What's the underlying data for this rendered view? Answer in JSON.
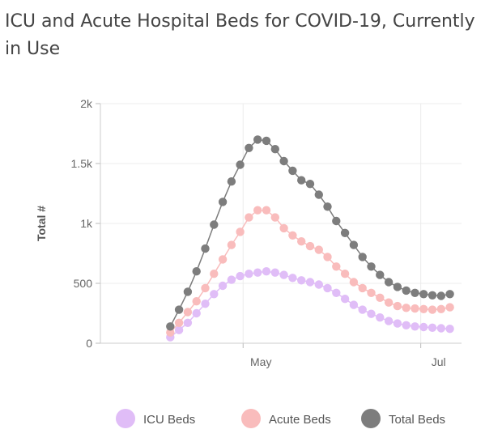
{
  "chart_data": {
    "type": "scatter",
    "title": "ICU and Acute Hospital Beds for COVID-19, Currently in Use",
    "ylabel": "Total #",
    "xlabel": "",
    "ylim": [
      0,
      2000
    ],
    "xlim": [
      "2020-03-13",
      "2020-07-15"
    ],
    "yticks": [
      {
        "value": 0,
        "label": "0"
      },
      {
        "value": 500,
        "label": "500"
      },
      {
        "value": 1000,
        "label": "1k"
      },
      {
        "value": 1500,
        "label": "1.5k"
      },
      {
        "value": 2000,
        "label": "2k"
      }
    ],
    "xticks": [
      {
        "value": "2020-05-01",
        "label": "May"
      },
      {
        "value": "2020-07-01",
        "label": "Jul"
      }
    ],
    "legend_position": "bottom",
    "series": [
      {
        "name": "ICU Beds",
        "color": "#e0bdf7",
        "points": [
          [
            "2020-04-06",
            50
          ],
          [
            "2020-04-09",
            110
          ],
          [
            "2020-04-12",
            170
          ],
          [
            "2020-04-15",
            250
          ],
          [
            "2020-04-18",
            330
          ],
          [
            "2020-04-21",
            410
          ],
          [
            "2020-04-24",
            480
          ],
          [
            "2020-04-27",
            530
          ],
          [
            "2020-04-30",
            560
          ],
          [
            "2020-05-03",
            580
          ],
          [
            "2020-05-06",
            590
          ],
          [
            "2020-05-09",
            600
          ],
          [
            "2020-05-12",
            590
          ],
          [
            "2020-05-15",
            570
          ],
          [
            "2020-05-18",
            545
          ],
          [
            "2020-05-21",
            525
          ],
          [
            "2020-05-24",
            510
          ],
          [
            "2020-05-27",
            490
          ],
          [
            "2020-05-30",
            460
          ],
          [
            "2020-06-02",
            420
          ],
          [
            "2020-06-05",
            370
          ],
          [
            "2020-06-08",
            320
          ],
          [
            "2020-06-11",
            280
          ],
          [
            "2020-06-14",
            245
          ],
          [
            "2020-06-17",
            215
          ],
          [
            "2020-06-20",
            185
          ],
          [
            "2020-06-23",
            165
          ],
          [
            "2020-06-26",
            150
          ],
          [
            "2020-06-29",
            140
          ],
          [
            "2020-07-02",
            135
          ],
          [
            "2020-07-05",
            130
          ],
          [
            "2020-07-08",
            125
          ],
          [
            "2020-07-11",
            120
          ]
        ]
      },
      {
        "name": "Acute Beds",
        "color": "#f9bcbc",
        "points": [
          [
            "2020-04-06",
            90
          ],
          [
            "2020-04-09",
            170
          ],
          [
            "2020-04-12",
            260
          ],
          [
            "2020-04-15",
            350
          ],
          [
            "2020-04-18",
            460
          ],
          [
            "2020-04-21",
            580
          ],
          [
            "2020-04-24",
            700
          ],
          [
            "2020-04-27",
            820
          ],
          [
            "2020-04-30",
            930
          ],
          [
            "2020-05-03",
            1050
          ],
          [
            "2020-05-06",
            1110
          ],
          [
            "2020-05-09",
            1110
          ],
          [
            "2020-05-12",
            1050
          ],
          [
            "2020-05-15",
            960
          ],
          [
            "2020-05-18",
            900
          ],
          [
            "2020-05-21",
            850
          ],
          [
            "2020-05-24",
            810
          ],
          [
            "2020-05-27",
            780
          ],
          [
            "2020-05-30",
            720
          ],
          [
            "2020-06-02",
            640
          ],
          [
            "2020-06-05",
            580
          ],
          [
            "2020-06-08",
            510
          ],
          [
            "2020-06-11",
            460
          ],
          [
            "2020-06-14",
            420
          ],
          [
            "2020-06-17",
            380
          ],
          [
            "2020-06-20",
            340
          ],
          [
            "2020-06-23",
            310
          ],
          [
            "2020-06-26",
            295
          ],
          [
            "2020-06-29",
            290
          ],
          [
            "2020-07-02",
            285
          ],
          [
            "2020-07-05",
            280
          ],
          [
            "2020-07-08",
            285
          ],
          [
            "2020-07-11",
            300
          ]
        ]
      },
      {
        "name": "Total Beds",
        "color": "#7d7d7d",
        "points": [
          [
            "2020-04-06",
            140
          ],
          [
            "2020-04-09",
            280
          ],
          [
            "2020-04-12",
            430
          ],
          [
            "2020-04-15",
            600
          ],
          [
            "2020-04-18",
            790
          ],
          [
            "2020-04-21",
            990
          ],
          [
            "2020-04-24",
            1180
          ],
          [
            "2020-04-27",
            1350
          ],
          [
            "2020-04-30",
            1490
          ],
          [
            "2020-05-03",
            1630
          ],
          [
            "2020-05-06",
            1700
          ],
          [
            "2020-05-09",
            1690
          ],
          [
            "2020-05-12",
            1620
          ],
          [
            "2020-05-15",
            1520
          ],
          [
            "2020-05-18",
            1440
          ],
          [
            "2020-05-21",
            1360
          ],
          [
            "2020-05-24",
            1330
          ],
          [
            "2020-05-27",
            1240
          ],
          [
            "2020-05-30",
            1140
          ],
          [
            "2020-06-02",
            1020
          ],
          [
            "2020-06-05",
            920
          ],
          [
            "2020-06-08",
            820
          ],
          [
            "2020-06-11",
            720
          ],
          [
            "2020-06-14",
            640
          ],
          [
            "2020-06-17",
            570
          ],
          [
            "2020-06-20",
            510
          ],
          [
            "2020-06-23",
            470
          ],
          [
            "2020-06-26",
            440
          ],
          [
            "2020-06-29",
            420
          ],
          [
            "2020-07-02",
            410
          ],
          [
            "2020-07-05",
            400
          ],
          [
            "2020-07-08",
            395
          ],
          [
            "2020-07-11",
            410
          ]
        ]
      }
    ]
  }
}
